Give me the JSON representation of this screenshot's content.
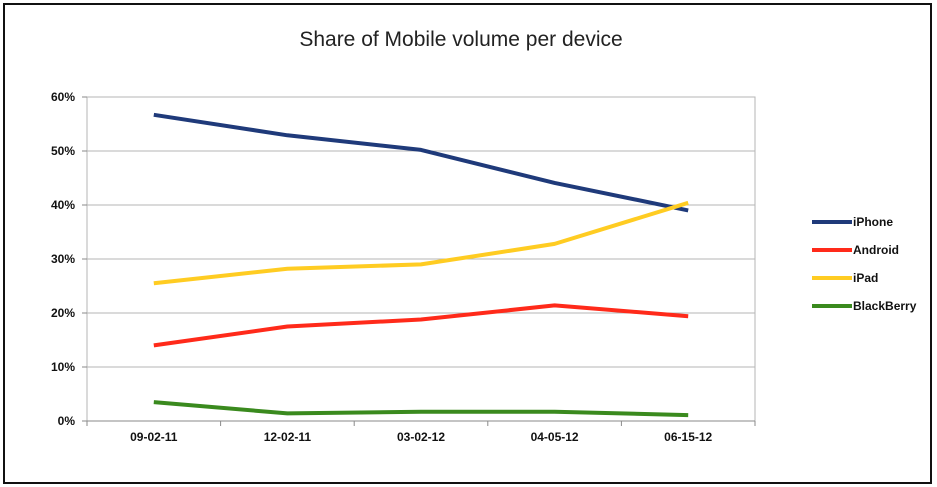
{
  "chart_data": {
    "type": "line",
    "title": "Share of Mobile volume per device",
    "xlabel": "",
    "ylabel": "",
    "categories": [
      "09-02-11",
      "12-02-11",
      "03-02-12",
      "04-05-12",
      "06-15-12"
    ],
    "ylim": [
      0,
      60
    ],
    "yticks": [
      0,
      10,
      20,
      30,
      40,
      50,
      60
    ],
    "ytick_labels": [
      "0%",
      "10%",
      "20%",
      "30%",
      "40%",
      "50%",
      "60%"
    ],
    "grid": true,
    "legend_position": "right",
    "series": [
      {
        "name": "iPhone",
        "color": "#1f3a7a",
        "values": [
          56.7,
          52.9,
          50.2,
          44.1,
          39.0
        ]
      },
      {
        "name": "Android",
        "color": "#ff2a1a",
        "values": [
          14.0,
          17.5,
          18.8,
          21.4,
          19.4
        ]
      },
      {
        "name": "iPad",
        "color": "#ffcc22",
        "values": [
          25.5,
          28.2,
          29.0,
          32.8,
          40.4
        ]
      },
      {
        "name": "BlackBerry",
        "color": "#3a8a1e",
        "values": [
          3.5,
          1.4,
          1.7,
          1.7,
          1.1
        ]
      }
    ]
  }
}
